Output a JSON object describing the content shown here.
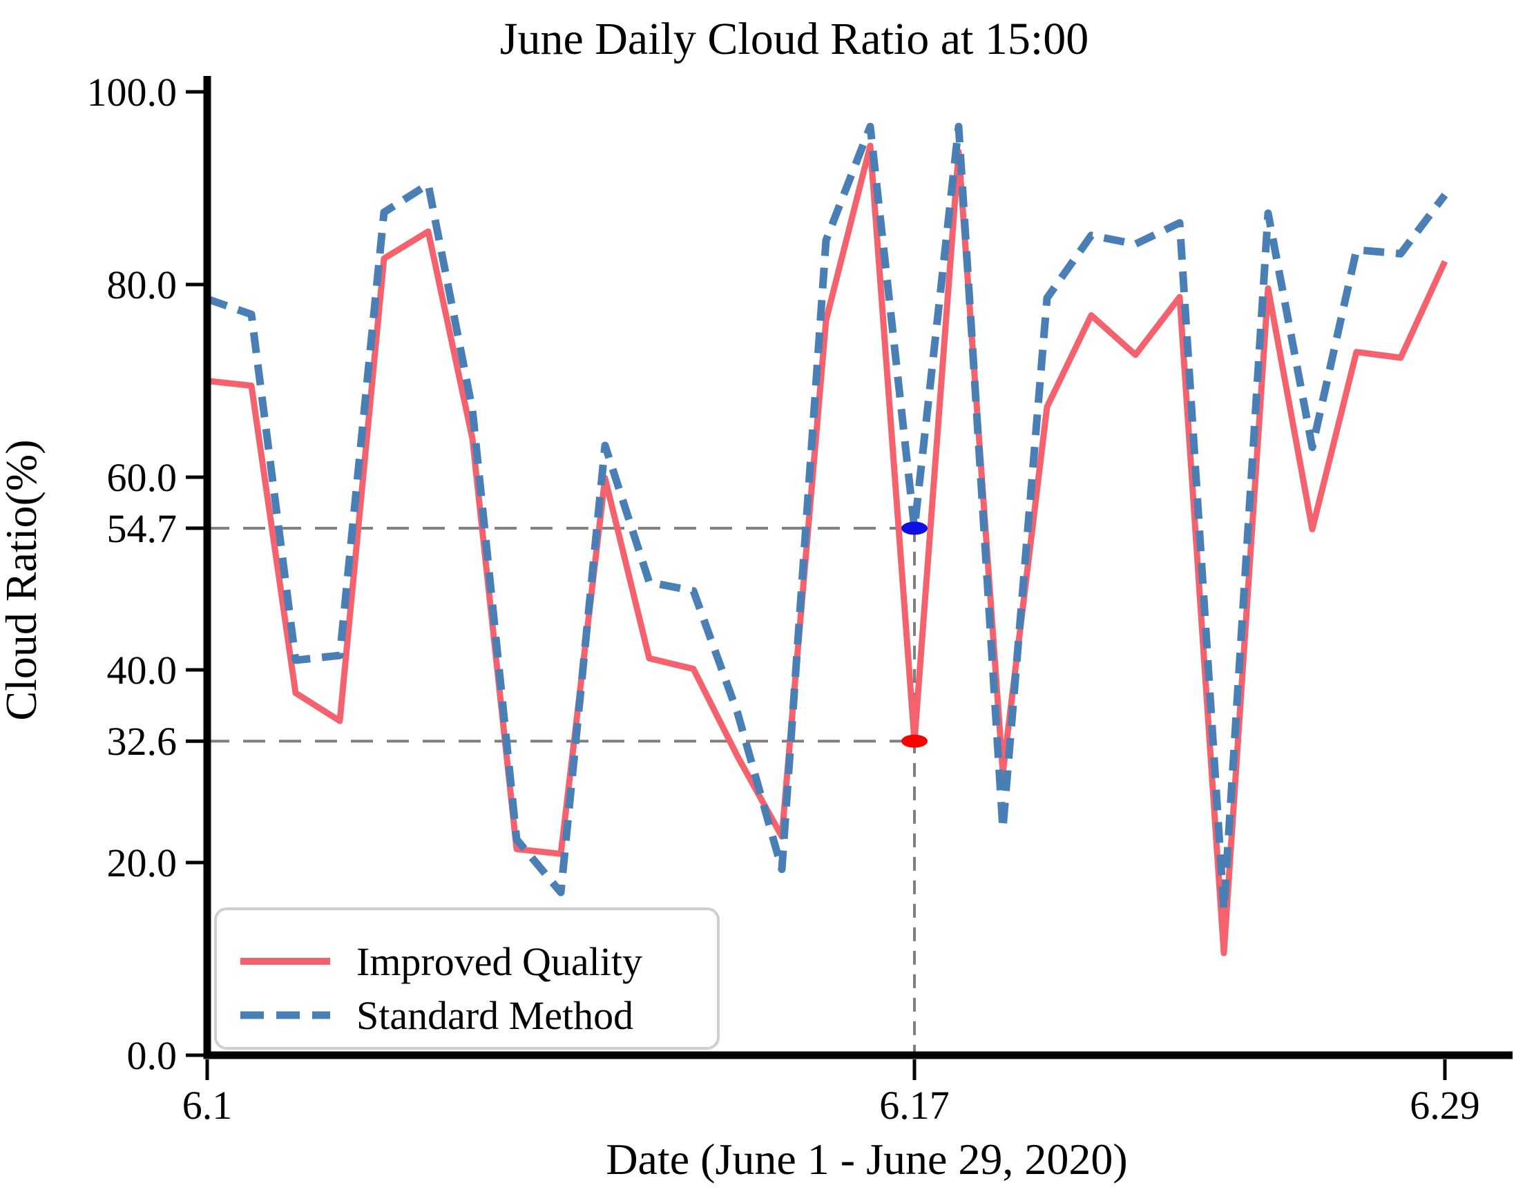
{
  "figure": {
    "title": "June Daily Cloud Ratio at 15:00",
    "xlabel": "Date (June 1 - June 29, 2020)",
    "ylabel": "Cloud Ratio(%)"
  },
  "chart_data": {
    "type": "line",
    "title": "June Daily Cloud Ratio at 15:00",
    "xlabel": "Date (June 1 - June 29, 2020)",
    "ylabel": "Cloud Ratio(%)",
    "ylim": [
      0,
      100
    ],
    "xlim_days": [
      1,
      30.5
    ],
    "x_days": [
      1,
      2,
      3,
      4,
      5,
      6,
      7,
      8,
      9,
      10,
      11,
      12,
      13,
      14,
      15,
      16,
      17,
      18,
      19,
      20,
      21,
      22,
      23,
      24,
      25,
      26,
      27,
      28,
      29
    ],
    "yticks": [
      {
        "value": 0,
        "label": "0.0"
      },
      {
        "value": 20,
        "label": "20.0"
      },
      {
        "value": 32.6,
        "label": "32.6"
      },
      {
        "value": 40,
        "label": "40.0"
      },
      {
        "value": 54.7,
        "label": "54.7"
      },
      {
        "value": 60,
        "label": "60.0"
      },
      {
        "value": 80,
        "label": "80.0"
      },
      {
        "value": 100,
        "label": "100.0"
      }
    ],
    "xticks": [
      {
        "day": 1,
        "label": "6.1"
      },
      {
        "day": 17,
        "label": "6.17"
      },
      {
        "day": 29,
        "label": "6.29"
      }
    ],
    "series": [
      {
        "name": "Improved Quality",
        "style": "solid",
        "color": "#f4626d",
        "values": [
          70.0,
          69.5,
          37.6,
          34.7,
          82.7,
          85.5,
          64.0,
          21.4,
          20.9,
          59.9,
          41.2,
          40.1,
          31.0,
          22.7,
          76.3,
          94.4,
          32.6,
          93.8,
          29.3,
          67.3,
          76.8,
          72.7,
          78.7,
          10.6,
          79.6,
          54.6,
          73.0,
          72.4,
          82.4
        ]
      },
      {
        "name": "Standard Method",
        "style": "dashed",
        "color": "#4a7fb5",
        "values": [
          78.5,
          76.9,
          41.0,
          41.5,
          87.5,
          90.4,
          67.0,
          22.4,
          16.9,
          63.3,
          49.1,
          48.2,
          35.5,
          19.3,
          84.6,
          96.4,
          54.7,
          96.4,
          23.5,
          78.6,
          85.1,
          84.2,
          86.4,
          15.1,
          87.4,
          63.1,
          83.6,
          83.2,
          89.3
        ]
      }
    ],
    "annotations": {
      "vline_day": 17,
      "hlines": [
        54.7,
        32.6
      ],
      "points": [
        {
          "series": "Standard Method",
          "day": 17,
          "value": 54.7,
          "color": "#0f10e1"
        },
        {
          "series": "Improved Quality",
          "day": 17,
          "value": 32.6,
          "color": "#fc0000"
        }
      ]
    },
    "legend": {
      "position": "lower left",
      "entries": [
        "Improved Quality",
        "Standard Method"
      ]
    },
    "colors": {
      "axis": "#000000",
      "grid": "#7f7f7f",
      "background": "#ffffff"
    }
  }
}
